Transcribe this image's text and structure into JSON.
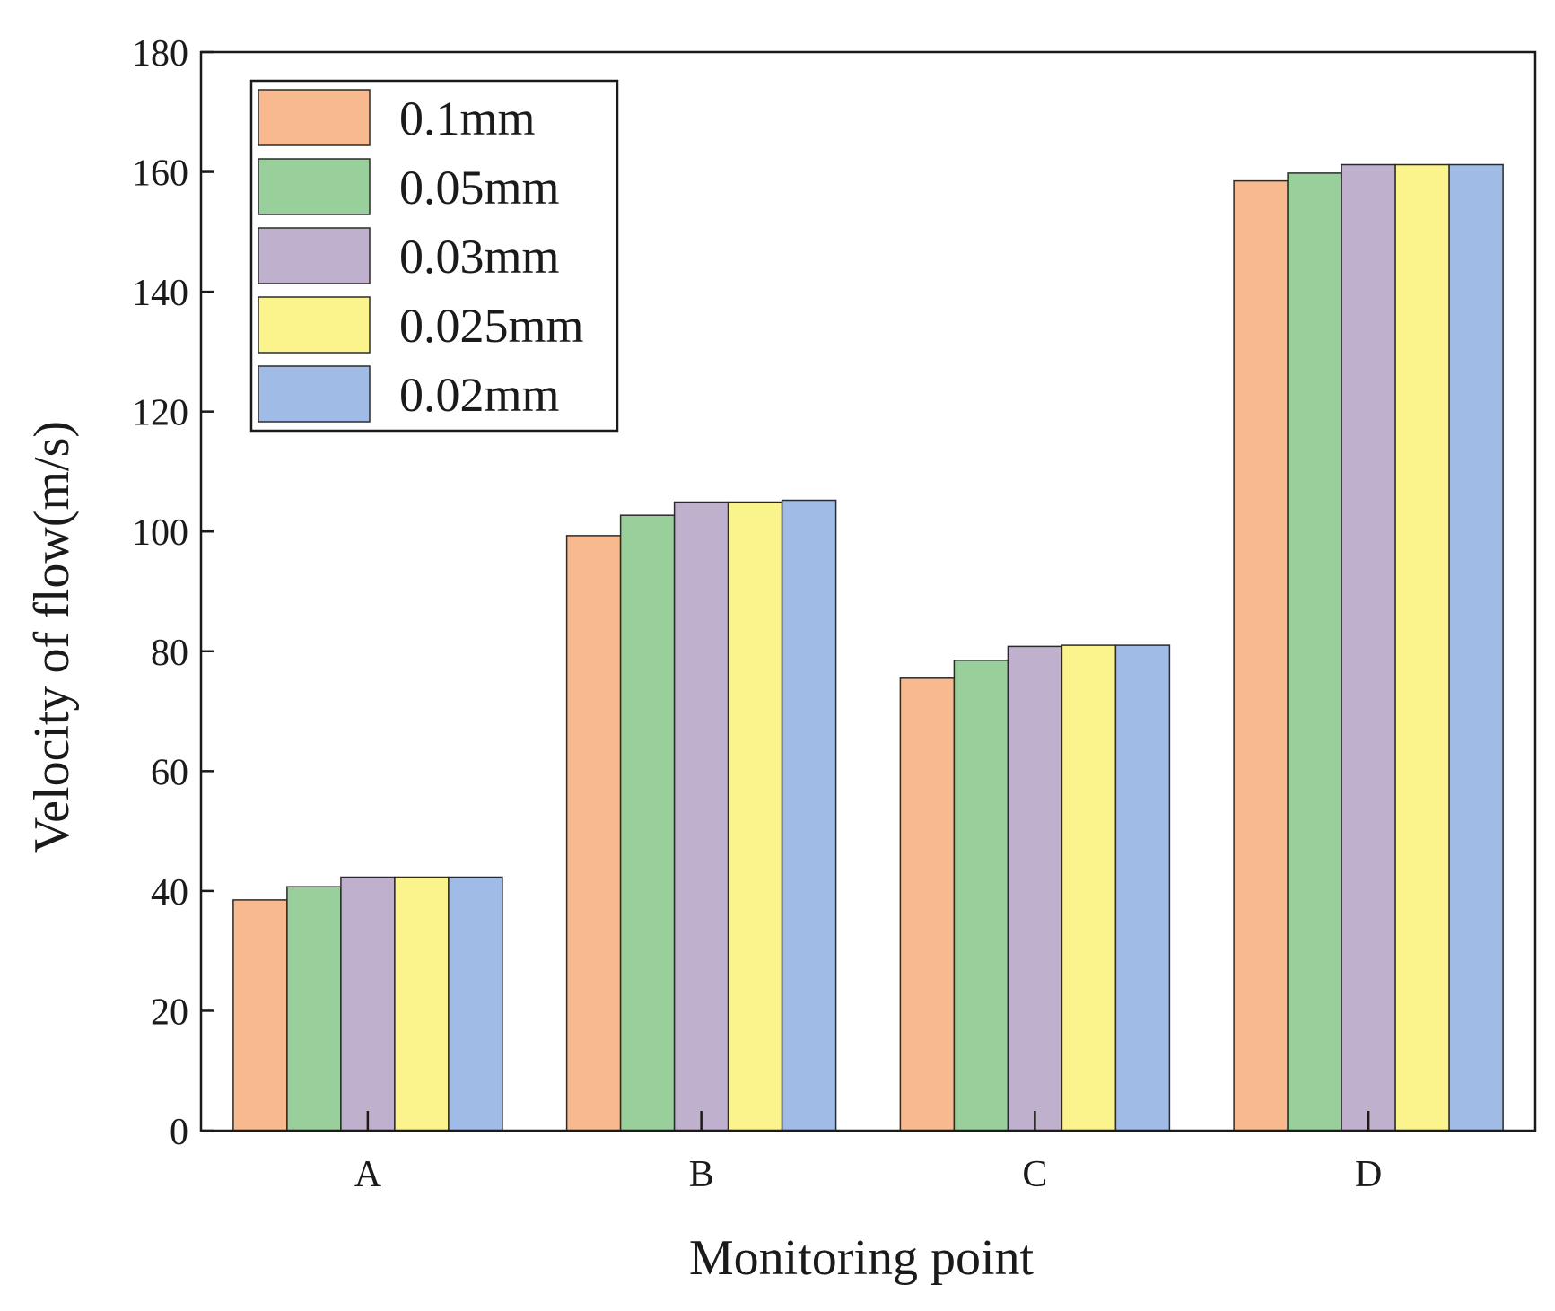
{
  "chart_data": {
    "type": "bar",
    "title": "",
    "xlabel": "Monitoring point",
    "ylabel": "Velocity of flow(m/s)",
    "categories": [
      "A",
      "B",
      "C",
      "D"
    ],
    "ylim": [
      0,
      180
    ],
    "yticks": [
      0,
      20,
      40,
      60,
      80,
      100,
      120,
      140,
      160,
      180
    ],
    "grid": false,
    "legend_position": "top-left",
    "series": [
      {
        "name": "0.1mm",
        "color": "#f8b98e",
        "values": [
          38.5,
          99.3,
          75.5,
          158.5
        ]
      },
      {
        "name": "0.05mm",
        "color": "#99cf9b",
        "values": [
          40.7,
          102.7,
          78.5,
          159.8
        ]
      },
      {
        "name": "0.03mm",
        "color": "#bfb0cd",
        "values": [
          42.3,
          104.9,
          80.8,
          161.2
        ]
      },
      {
        "name": "0.025mm",
        "color": "#fbf38c",
        "values": [
          42.3,
          104.9,
          81.0,
          161.2
        ]
      },
      {
        "name": "0.02mm",
        "color": "#9fbbe6",
        "values": [
          42.3,
          105.2,
          81.0,
          161.2
        ]
      }
    ]
  }
}
